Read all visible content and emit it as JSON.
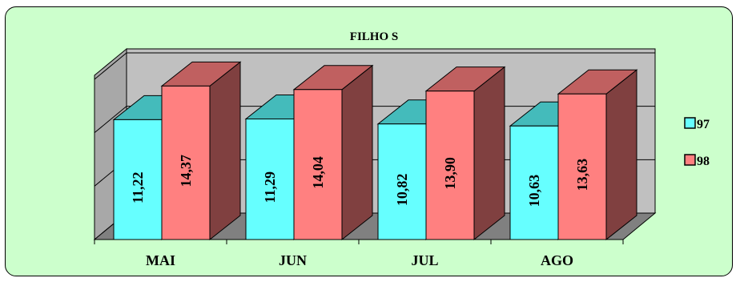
{
  "chart_data": {
    "type": "bar",
    "style": "3d-clustered",
    "title": "FILHO S",
    "categories": [
      "MAI",
      "JUN",
      "JUL",
      "AGO"
    ],
    "series": [
      {
        "name": "97",
        "values": [
          11.22,
          11.29,
          10.82,
          10.63
        ],
        "labels": [
          "11,22",
          "11,29",
          "10,82",
          "10,63"
        ],
        "color": "#66ffff",
        "side_color": "#339999",
        "top_color": "#44bbbb"
      },
      {
        "name": "98",
        "values": [
          14.37,
          14.04,
          13.9,
          13.63
        ],
        "labels": [
          "14,37",
          "14,04",
          "13,90",
          "13,63"
        ],
        "color": "#ff8080",
        "side_color": "#804040",
        "top_color": "#c06060"
      }
    ],
    "ylim": [
      0,
      15
    ],
    "grid": true,
    "legend_position": "right",
    "colors": {
      "background": "#ccffcc",
      "wall": "#c0c0c0",
      "floor": "#808080"
    }
  }
}
